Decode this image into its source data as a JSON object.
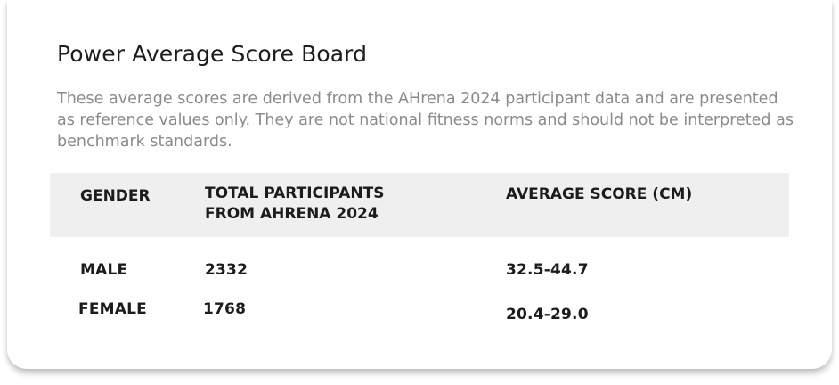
{
  "board": {
    "title": "Power Average Score Board",
    "description": "These average scores are derived from the AHrena 2024 participant data and are presented as reference values only. They are not national fitness norms and should not be interpreted as benchmark standards.",
    "columns": {
      "gender": "GENDER",
      "participants_line1": "TOTAL PARTICIPANTS",
      "participants_line2": "FROM AHRENA 2024",
      "average": "AVERAGE SCORE (CM)"
    },
    "rows": [
      {
        "gender": "MALE",
        "participants": "2332",
        "average": "32.5-44.7"
      },
      {
        "gender": "FEMALE",
        "participants": "1768",
        "average": "20.4-29.0"
      }
    ]
  }
}
